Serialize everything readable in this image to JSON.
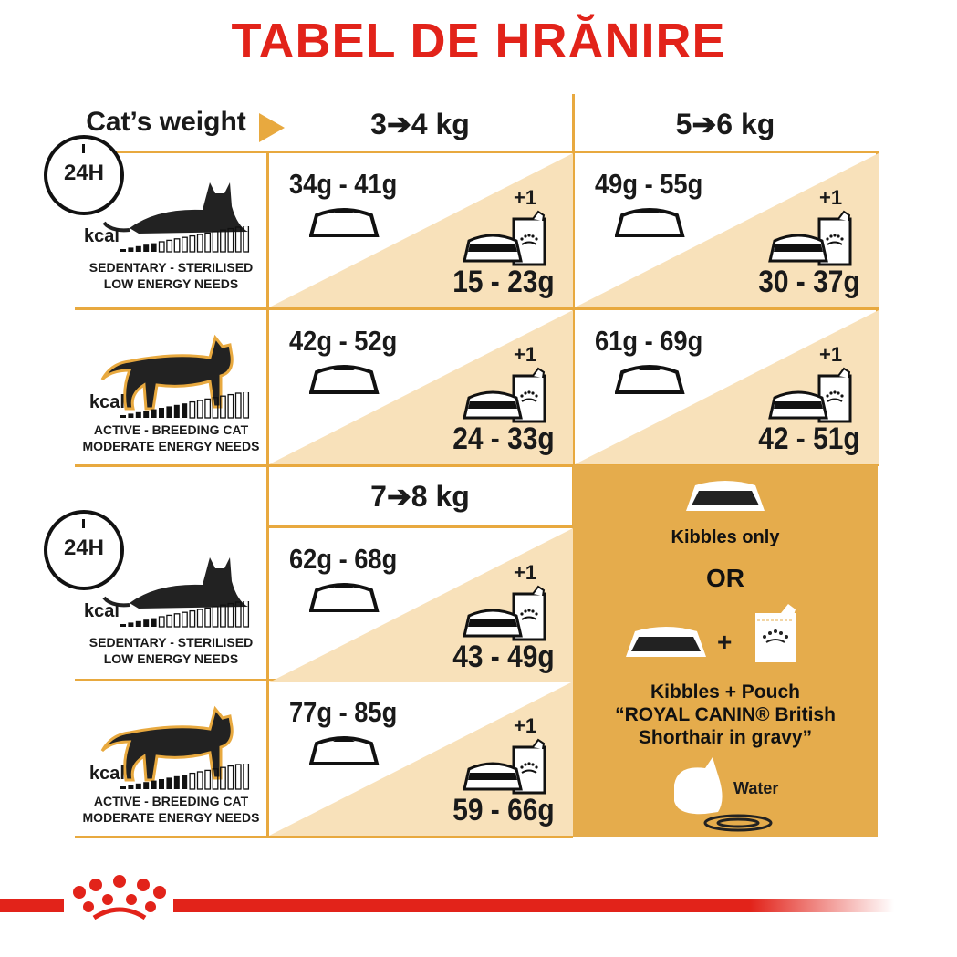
{
  "title": "TABEL DE HRĂNIRE",
  "header": {
    "cat_weight": "Cat’s weight",
    "col1": "3➔4 kg",
    "col2": "5➔6 kg",
    "col3": "7➔8 kg"
  },
  "profiles": [
    {
      "icon": "lying-cat-24h-icon",
      "kcal": "kcal",
      "line1": "SEDENTARY - STERILISED",
      "line2": "LOW ENERGY NEEDS",
      "clock": "24H"
    },
    {
      "icon": "walking-cat-icon",
      "kcal": "kcal",
      "line1": "ACTIVE - BREEDING CAT",
      "line2": "MODERATE ENERGY NEEDS"
    },
    {
      "icon": "lying-cat-24h-icon",
      "kcal": "kcal",
      "line1": "SEDENTARY - STERILISED",
      "line2": "LOW ENERGY NEEDS",
      "clock": "24H"
    },
    {
      "icon": "walking-cat-icon",
      "kcal": "kcal",
      "line1": "ACTIVE - BREEDING CAT",
      "line2": "MODERATE ENERGY NEEDS"
    }
  ],
  "cells": [
    {
      "weight": "3➔4 kg",
      "profile": "sedentary",
      "kibbles_only": "34g - 41g",
      "plus": "+1",
      "kibbles_with_pouch": "15 - 23g"
    },
    {
      "weight": "5➔6 kg",
      "profile": "sedentary",
      "kibbles_only": "49g - 55g",
      "plus": "+1",
      "kibbles_with_pouch": "30 - 37g"
    },
    {
      "weight": "3➔4 kg",
      "profile": "active",
      "kibbles_only": "42g - 52g",
      "plus": "+1",
      "kibbles_with_pouch": "24 - 33g"
    },
    {
      "weight": "5➔6 kg",
      "profile": "active",
      "kibbles_only": "61g - 69g",
      "plus": "+1",
      "kibbles_with_pouch": "42 - 51g"
    },
    {
      "weight": "7➔8 kg",
      "profile": "sedentary",
      "kibbles_only": "62g - 68g",
      "plus": "+1",
      "kibbles_with_pouch": "43 - 49g"
    },
    {
      "weight": "7➔8 kg",
      "profile": "active",
      "kibbles_only": "77g - 85g",
      "plus": "+1",
      "kibbles_with_pouch": "59 - 66g"
    }
  ],
  "legend": {
    "kibbles_only": "Kibbles only",
    "or": "OR",
    "plus": "+",
    "pouch_line1": "Kibbles + Pouch",
    "pouch_line2": "“ROYAL CANIN® British",
    "pouch_line3": "Shorthair in gravy”",
    "water": "Water"
  },
  "colors": {
    "title": "#e2231a",
    "border": "#e8a93f",
    "cream": "#f8e1ba",
    "legend_bg": "#e5ac4c",
    "footer": "#e2231a"
  }
}
